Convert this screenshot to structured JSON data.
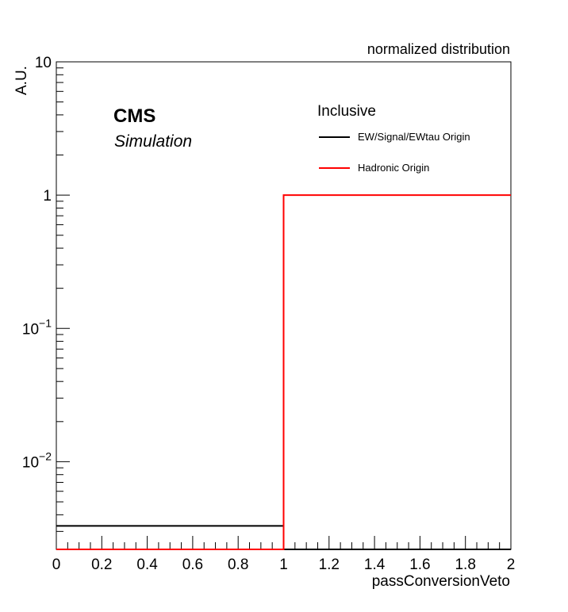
{
  "chart_data": {
    "type": "histogram-step",
    "title": "normalized distribution",
    "xlabel": "passConversionVeto",
    "ylabel": "A.U.",
    "xlim": [
      0,
      2
    ],
    "ylim": [
      0.0022,
      10
    ],
    "yscale": "log",
    "x_ticks": [
      0,
      0.2,
      0.4,
      0.6,
      0.8,
      1,
      1.2,
      1.4,
      1.6,
      1.8,
      2
    ],
    "x_tick_labels": [
      "0",
      "0.2",
      "0.4",
      "0.6",
      "0.8",
      "1",
      "1.2",
      "1.4",
      "1.6",
      "1.8",
      "2"
    ],
    "y_ticks": [
      {
        "value": 10,
        "base": "10",
        "exp": ""
      },
      {
        "value": 1,
        "base": "1",
        "exp": ""
      },
      {
        "value": 0.1,
        "base": "10",
        "exp": "−1"
      },
      {
        "value": 0.01,
        "base": "10",
        "exp": "−2"
      }
    ],
    "bin_edges": [
      0,
      1,
      2
    ],
    "series": [
      {
        "name": "EW/Signal/EWtau Origin",
        "color": "#000000",
        "values": [
          0.0033,
          0.0
        ]
      },
      {
        "name": "Hadronic Origin",
        "color": "#ff0000",
        "values": [
          0.0,
          1.0
        ]
      }
    ],
    "legend_placement": "top-right",
    "grid": false
  },
  "labels": {
    "experiment": "CMS",
    "status": "Simulation",
    "legend_header": "Inclusive"
  }
}
